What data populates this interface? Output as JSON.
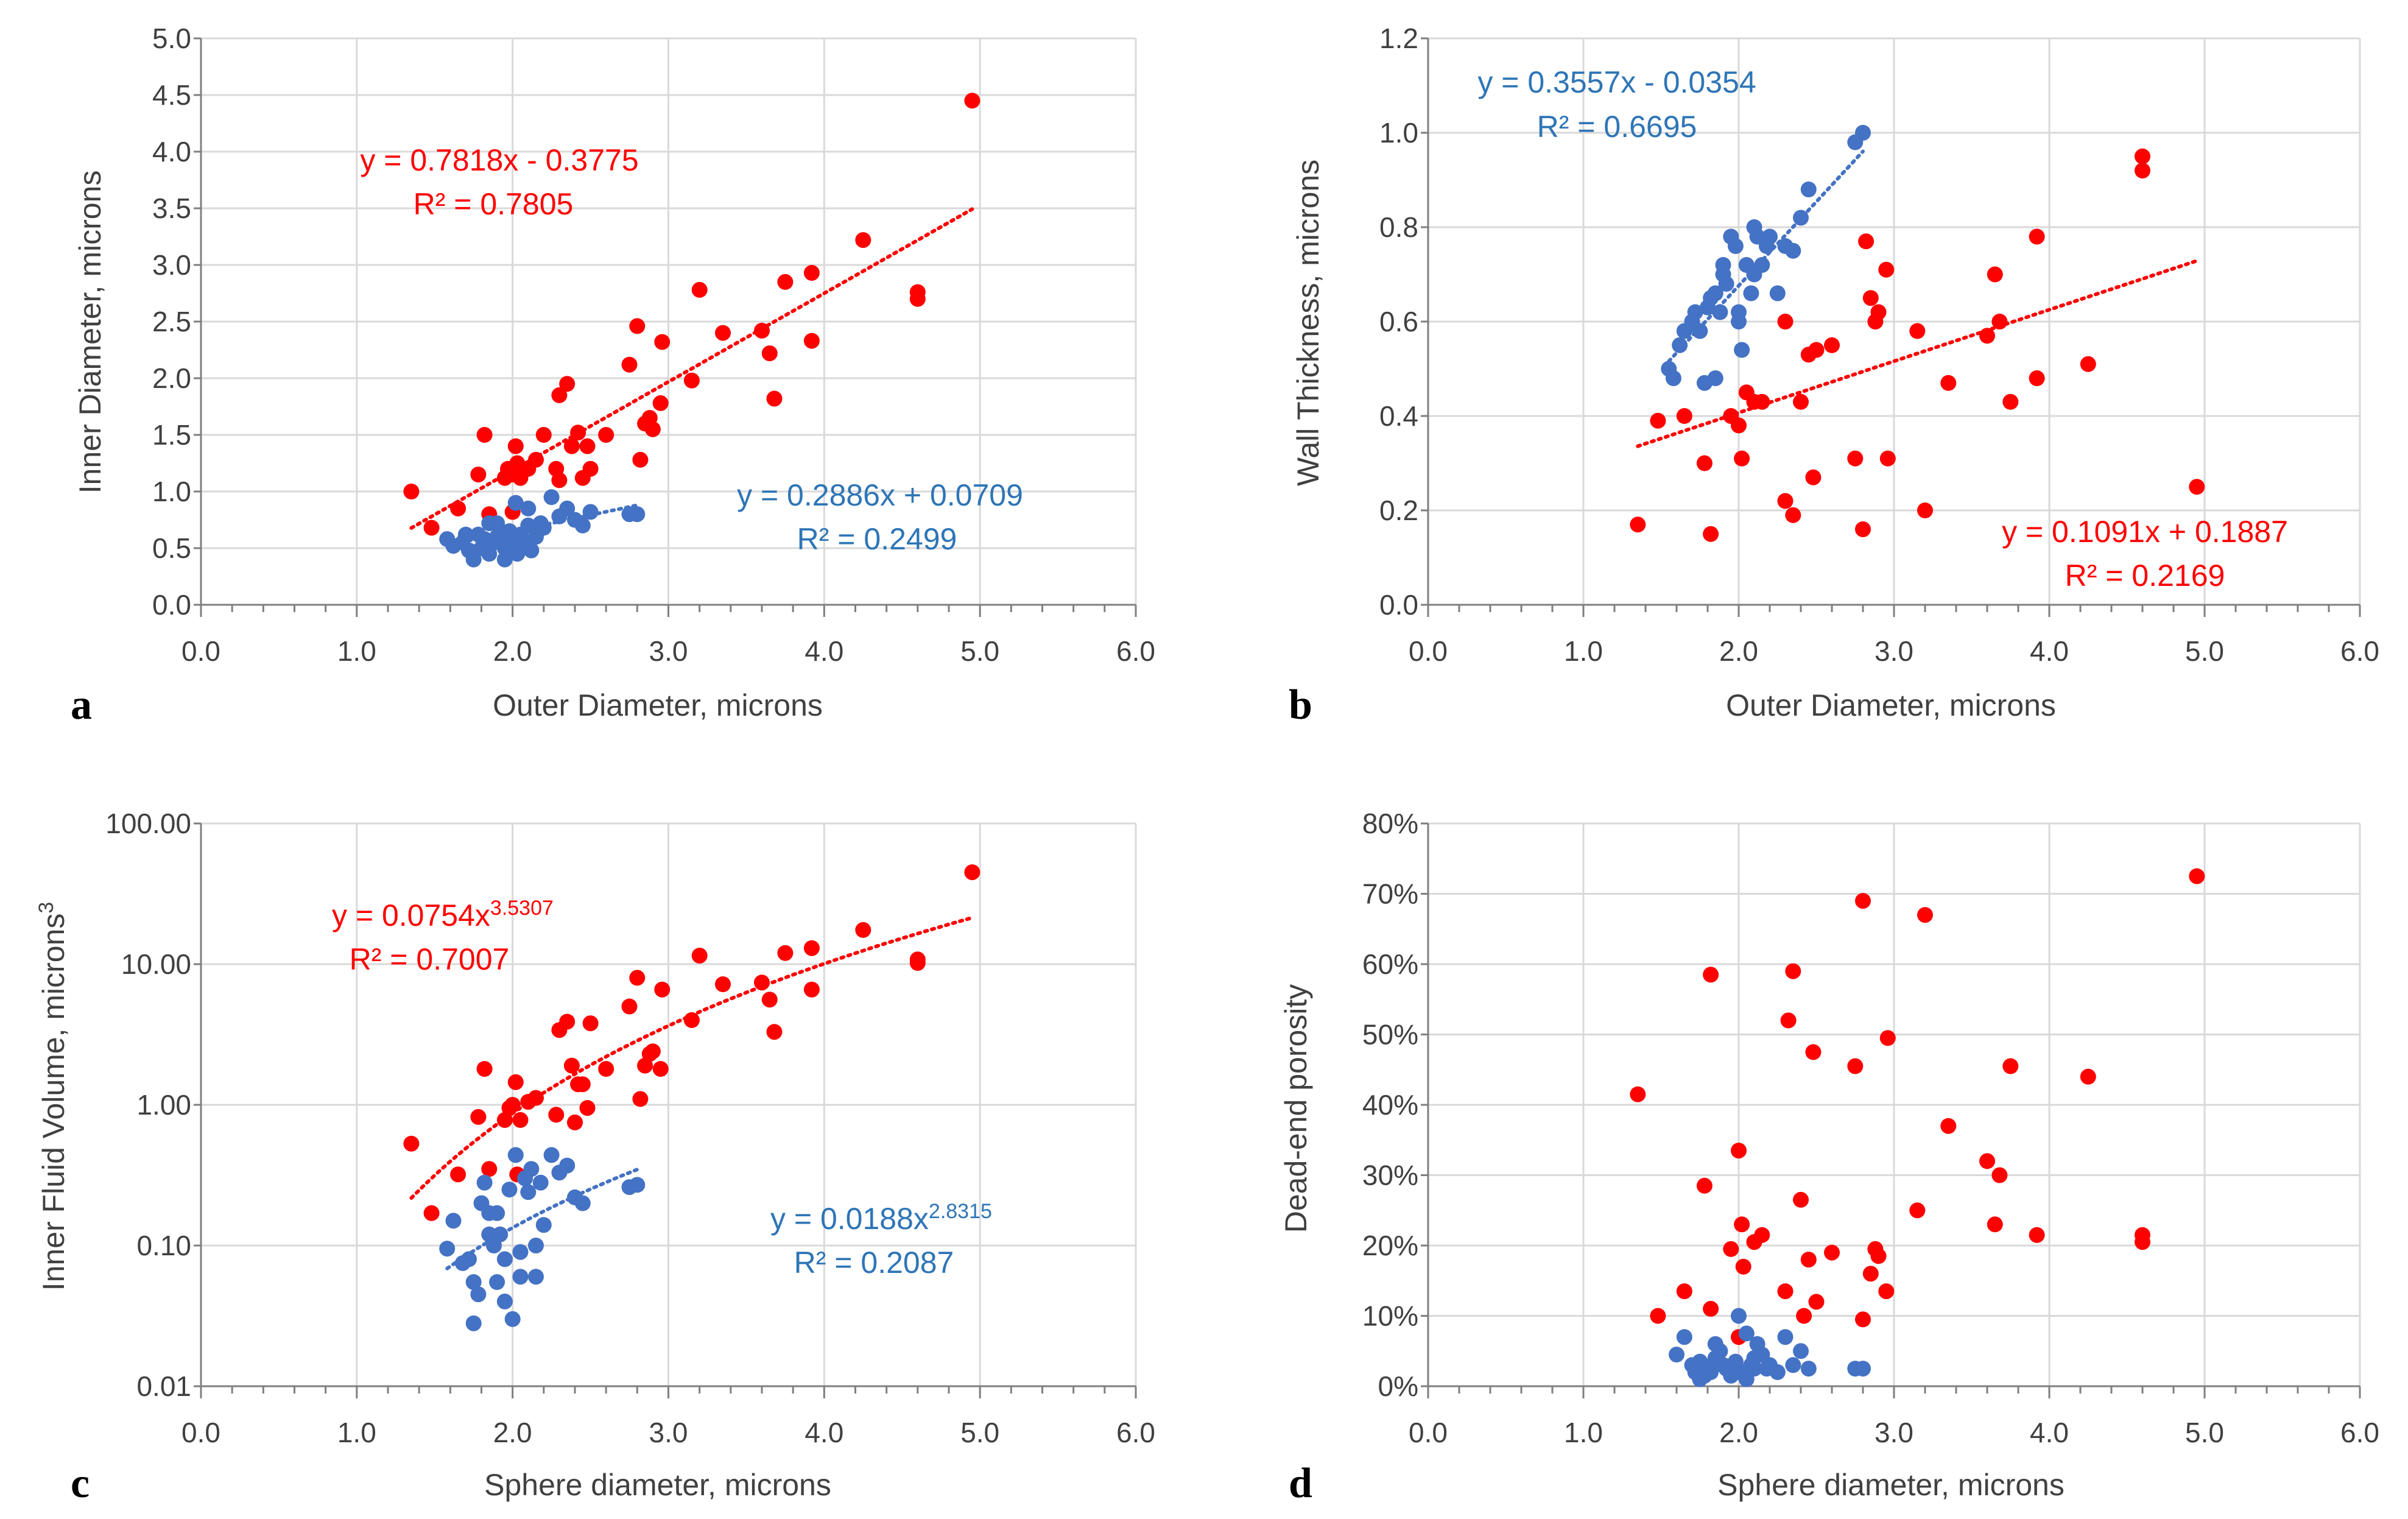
{
  "colors": {
    "red": "#ff0000",
    "blue": "#4472c4",
    "blue_text": "#2e75b6",
    "grid": "#d9d9d9",
    "axis": "#7f7f7f"
  },
  "chart_data": [
    {
      "panel": "a",
      "type": "scatter",
      "xlabel": "Outer Diameter, microns",
      "ylabel": "Inner Diameter, microns",
      "xlim": [
        0,
        6
      ],
      "ylim": [
        0,
        5
      ],
      "xticks": [
        "0.0",
        "1.0",
        "2.0",
        "3.0",
        "4.0",
        "5.0",
        "6.0"
      ],
      "yticks": [
        "0.0",
        "0.5",
        "1.0",
        "1.5",
        "2.0",
        "2.5",
        "3.0",
        "3.5",
        "4.0",
        "4.5",
        "5.0"
      ],
      "series": [
        {
          "name": "red",
          "color": "#ff0000",
          "x": [
            1.35,
            1.48,
            1.65,
            1.78,
            1.82,
            1.85,
            1.95,
            1.97,
            2.0,
            2.02,
            2.03,
            2.05,
            2.1,
            2.15,
            2.2,
            2.28,
            2.3,
            2.3,
            2.35,
            2.38,
            2.42,
            2.45,
            2.48,
            2.5,
            2.6,
            2.75,
            2.8,
            2.82,
            2.85,
            2.88,
            2.9,
            2.95,
            2.96,
            3.15,
            3.2,
            3.35,
            3.6,
            3.65,
            3.68,
            3.75,
            3.92,
            3.92,
            4.25,
            4.6,
            4.6,
            4.95,
            2.0
          ],
          "y": [
            1.0,
            0.68,
            0.85,
            1.15,
            1.5,
            0.8,
            1.12,
            1.2,
            1.15,
            1.4,
            1.25,
            1.12,
            1.2,
            1.28,
            1.5,
            1.2,
            1.1,
            1.85,
            1.95,
            1.4,
            1.52,
            1.12,
            1.4,
            1.2,
            1.5,
            2.12,
            2.46,
            1.28,
            1.6,
            1.65,
            1.55,
            1.78,
            2.32,
            1.98,
            2.78,
            2.4,
            2.42,
            2.22,
            1.82,
            2.85,
            2.93,
            2.33,
            3.22,
            2.76,
            2.7,
            4.45,
            0.82
          ],
          "fit": {
            "type": "linear",
            "slope": 0.7818,
            "intercept": -0.3775,
            "xmin": 1.35,
            "xmax": 4.95
          },
          "equation": "y = 0.7818x - 0.3775",
          "r2": "R² = 0.7805"
        },
        {
          "name": "blue",
          "color": "#4472c4",
          "x": [
            1.58,
            1.62,
            1.68,
            1.72,
            1.75,
            1.78,
            1.8,
            1.82,
            1.85,
            1.88,
            1.9,
            1.92,
            1.95,
            1.98,
            2.0,
            2.02,
            2.03,
            2.05,
            2.08,
            2.1,
            2.12,
            2.15,
            2.18,
            2.2,
            2.25,
            2.3,
            2.35,
            2.4,
            2.45,
            2.5,
            2.75,
            2.8,
            1.7,
            1.95,
            2.05,
            2.1,
            2.0,
            1.9,
            2.15,
            1.85
          ],
          "y": [
            0.58,
            0.52,
            0.55,
            0.48,
            0.4,
            0.62,
            0.5,
            0.58,
            0.45,
            0.55,
            0.72,
            0.6,
            0.5,
            0.65,
            0.58,
            0.9,
            0.45,
            0.62,
            0.55,
            0.7,
            0.48,
            0.6,
            0.72,
            0.68,
            0.95,
            0.78,
            0.85,
            0.75,
            0.7,
            0.82,
            0.8,
            0.8,
            0.62,
            0.4,
            0.5,
            0.85,
            0.52,
            0.6,
            0.65,
            0.72
          ],
          "fit": {
            "type": "linear",
            "slope": 0.2886,
            "intercept": 0.0709,
            "xmin": 1.58,
            "xmax": 2.8
          },
          "equation": "y = 0.2886x + 0.0709",
          "r2": "R² = 0.2499"
        }
      ]
    },
    {
      "panel": "b",
      "type": "scatter",
      "xlabel": "Outer Diameter, microns",
      "ylabel": "Wall Thickness, microns",
      "xlim": [
        0,
        6
      ],
      "ylim": [
        0,
        1.2
      ],
      "xticks": [
        "0.0",
        "1.0",
        "2.0",
        "3.0",
        "4.0",
        "5.0",
        "6.0"
      ],
      "yticks": [
        "0.0",
        "0.2",
        "0.4",
        "0.6",
        "0.8",
        "1.0",
        "1.2"
      ],
      "series": [
        {
          "name": "blue",
          "color": "#4472c4",
          "x": [
            1.55,
            1.58,
            1.62,
            1.65,
            1.7,
            1.72,
            1.75,
            1.78,
            1.8,
            1.82,
            1.85,
            1.88,
            1.9,
            1.92,
            1.95,
            1.98,
            2.0,
            2.02,
            2.05,
            2.08,
            2.1,
            2.12,
            2.15,
            2.18,
            2.2,
            2.25,
            2.3,
            2.35,
            2.4,
            2.45,
            2.75,
            2.8,
            1.9,
            2.0,
            1.85,
            2.1
          ],
          "y": [
            0.5,
            0.48,
            0.55,
            0.58,
            0.6,
            0.62,
            0.58,
            0.47,
            0.63,
            0.65,
            0.66,
            0.62,
            0.72,
            0.68,
            0.78,
            0.76,
            0.62,
            0.54,
            0.72,
            0.66,
            0.8,
            0.78,
            0.72,
            0.76,
            0.78,
            0.66,
            0.76,
            0.75,
            0.82,
            0.88,
            0.98,
            1.0,
            0.7,
            0.6,
            0.48,
            0.7
          ],
          "fit": {
            "type": "linear",
            "slope": 0.3557,
            "intercept": -0.0354,
            "xmin": 1.55,
            "xmax": 2.8
          },
          "equation": "y = 0.3557x - 0.0354",
          "r2": "R² = 0.6695"
        },
        {
          "name": "red",
          "color": "#ff0000",
          "x": [
            1.35,
            1.48,
            1.65,
            1.78,
            1.82,
            1.95,
            2.0,
            2.02,
            2.05,
            2.1,
            2.15,
            2.3,
            2.3,
            2.35,
            2.4,
            2.45,
            2.48,
            2.5,
            2.6,
            2.75,
            2.8,
            2.82,
            2.85,
            2.88,
            2.9,
            2.95,
            2.96,
            3.15,
            3.2,
            3.35,
            3.6,
            3.65,
            3.68,
            3.75,
            3.92,
            3.92,
            4.25,
            4.6,
            4.6,
            4.95
          ],
          "y": [
            0.17,
            0.39,
            0.4,
            0.3,
            0.15,
            0.4,
            0.38,
            0.31,
            0.45,
            0.43,
            0.43,
            0.6,
            0.22,
            0.19,
            0.43,
            0.53,
            0.27,
            0.54,
            0.55,
            0.31,
            0.16,
            0.77,
            0.65,
            0.6,
            0.62,
            0.71,
            0.31,
            0.58,
            0.2,
            0.47,
            0.57,
            0.7,
            0.6,
            0.43,
            0.78,
            0.48,
            0.51,
            0.95,
            0.92,
            0.25
          ],
          "fit": {
            "type": "linear",
            "slope": 0.1091,
            "intercept": 0.1887,
            "xmin": 1.35,
            "xmax": 4.95
          },
          "equation": "y = 0.1091x + 0.1887",
          "r2": "R² = 0.2169"
        }
      ]
    },
    {
      "panel": "c",
      "type": "scatter",
      "xlabel": "Sphere diameter, microns",
      "ylabel": "Inner Fluid Volume, microns",
      "ylabel_sup": "3",
      "yscale": "log",
      "xlim": [
        0,
        6
      ],
      "ylim": [
        0.01,
        100
      ],
      "xticks": [
        "0.0",
        "1.0",
        "2.0",
        "3.0",
        "4.0",
        "5.0",
        "6.0"
      ],
      "yticks": [
        "0.01",
        "0.10",
        "1.00",
        "10.00",
        "100.00"
      ],
      "series": [
        {
          "name": "red",
          "color": "#ff0000",
          "x": [
            1.35,
            1.48,
            1.65,
            1.78,
            1.82,
            1.85,
            1.95,
            1.98,
            2.0,
            2.02,
            2.05,
            2.1,
            2.15,
            2.28,
            2.3,
            2.35,
            2.38,
            2.4,
            2.42,
            2.45,
            2.48,
            2.5,
            2.6,
            2.75,
            2.8,
            2.82,
            2.85,
            2.88,
            2.9,
            2.95,
            2.96,
            3.15,
            3.2,
            3.35,
            3.6,
            3.65,
            3.68,
            3.75,
            3.92,
            3.92,
            4.25,
            4.6,
            4.6,
            4.95,
            2.03
          ],
          "y": [
            0.53,
            0.17,
            0.32,
            0.82,
            1.8,
            0.35,
            0.78,
            0.95,
            1.0,
            1.45,
            0.78,
            1.05,
            1.12,
            0.85,
            3.4,
            3.9,
            1.9,
            0.75,
            1.4,
            1.4,
            0.95,
            3.8,
            1.8,
            5.0,
            8.0,
            1.1,
            1.9,
            2.3,
            2.4,
            1.8,
            6.6,
            4.0,
            11.5,
            7.2,
            7.4,
            5.6,
            3.3,
            12.0,
            13.0,
            6.6,
            17.5,
            10.8,
            10.2,
            45.0,
            0.32
          ],
          "fit": {
            "type": "power",
            "a": 0.0754,
            "b": 3.5307,
            "xmin": 1.35,
            "xmax": 4.95
          },
          "equation": "y = 0.0754x",
          "equation_sup": "3.5307",
          "r2": "R² = 0.7007"
        },
        {
          "name": "blue",
          "color": "#4472c4",
          "x": [
            1.58,
            1.62,
            1.68,
            1.72,
            1.75,
            1.78,
            1.8,
            1.82,
            1.85,
            1.88,
            1.9,
            1.92,
            1.95,
            1.98,
            2.0,
            2.02,
            2.05,
            2.08,
            2.1,
            2.12,
            2.15,
            2.18,
            2.2,
            2.25,
            2.3,
            2.35,
            2.4,
            2.45,
            2.75,
            2.8,
            1.75,
            1.95,
            1.9,
            2.05,
            1.85,
            2.15
          ],
          "y": [
            0.095,
            0.15,
            0.075,
            0.08,
            0.055,
            0.045,
            0.2,
            0.28,
            0.12,
            0.1,
            0.17,
            0.12,
            0.04,
            0.25,
            0.03,
            0.44,
            0.06,
            0.3,
            0.24,
            0.35,
            0.1,
            0.28,
            0.14,
            0.44,
            0.33,
            0.37,
            0.22,
            0.2,
            0.26,
            0.27,
            0.028,
            0.08,
            0.055,
            0.09,
            0.17,
            0.06
          ],
          "fit": {
            "type": "power",
            "a": 0.0188,
            "b": 2.8315,
            "xmin": 1.58,
            "xmax": 2.8
          },
          "equation": "y = 0.0188x",
          "equation_sup": "2.8315",
          "r2": "R² = 0.2087"
        }
      ]
    },
    {
      "panel": "d",
      "type": "scatter",
      "xlabel": "Sphere diameter, microns",
      "ylabel": "Dead-end porosity",
      "xlim": [
        0,
        6
      ],
      "ylim": [
        0,
        0.8
      ],
      "xticks": [
        "0.0",
        "1.0",
        "2.0",
        "3.0",
        "4.0",
        "5.0",
        "6.0"
      ],
      "yticks": [
        "0%",
        "10%",
        "20%",
        "30%",
        "40%",
        "50%",
        "60%",
        "70%",
        "80%"
      ],
      "series": [
        {
          "name": "red",
          "color": "#ff0000",
          "x": [
            1.35,
            1.48,
            1.65,
            1.78,
            1.82,
            1.82,
            1.95,
            2.0,
            2.02,
            2.03,
            2.1,
            2.15,
            2.3,
            2.32,
            2.35,
            2.4,
            2.42,
            2.45,
            2.48,
            2.5,
            2.6,
            2.75,
            2.8,
            2.8,
            2.85,
            2.88,
            2.9,
            2.95,
            2.96,
            3.15,
            3.2,
            3.35,
            3.6,
            3.65,
            3.68,
            3.75,
            3.92,
            4.25,
            4.6,
            4.6,
            4.95,
            2.0
          ],
          "y": [
            0.415,
            0.1,
            0.135,
            0.285,
            0.585,
            0.11,
            0.195,
            0.335,
            0.23,
            0.17,
            0.205,
            0.215,
            0.135,
            0.52,
            0.59,
            0.265,
            0.1,
            0.18,
            0.475,
            0.12,
            0.19,
            0.455,
            0.69,
            0.095,
            0.16,
            0.195,
            0.185,
            0.135,
            0.495,
            0.25,
            0.67,
            0.37,
            0.32,
            0.23,
            0.3,
            0.455,
            0.215,
            0.44,
            0.215,
            0.205,
            0.725,
            0.07
          ],
          "fit": null
        },
        {
          "name": "blue",
          "color": "#4472c4",
          "x": [
            1.6,
            1.65,
            1.7,
            1.72,
            1.75,
            1.78,
            1.8,
            1.82,
            1.85,
            1.88,
            1.9,
            1.92,
            1.95,
            1.98,
            2.0,
            2.02,
            2.05,
            2.08,
            2.1,
            2.12,
            2.15,
            2.18,
            2.2,
            2.25,
            2.3,
            2.35,
            2.4,
            2.45,
            2.75,
            2.8,
            1.75,
            1.85,
            1.95,
            2.05,
            2.0,
            1.9,
            2.1
          ],
          "y": [
            0.045,
            0.07,
            0.03,
            0.02,
            0.035,
            0.015,
            0.028,
            0.02,
            0.04,
            0.05,
            0.03,
            0.025,
            0.02,
            0.035,
            0.1,
            0.02,
            0.075,
            0.03,
            0.04,
            0.06,
            0.045,
            0.025,
            0.03,
            0.02,
            0.07,
            0.03,
            0.05,
            0.025,
            0.025,
            0.025,
            0.01,
            0.06,
            0.015,
            0.01,
            0.02,
            0.03,
            0.025
          ],
          "fit": null
        }
      ]
    }
  ]
}
